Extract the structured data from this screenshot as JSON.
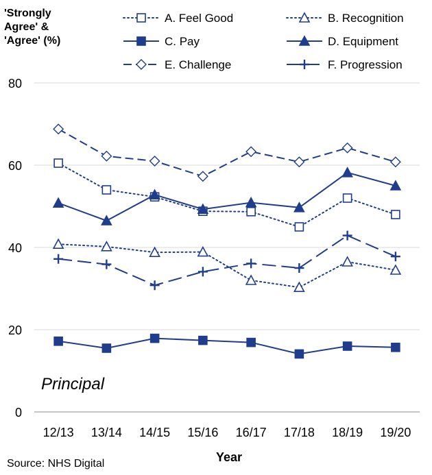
{
  "chart_data": {
    "type": "line",
    "ylabel_lines": [
      "'Strongly",
      "Agree' &",
      "'Agree' (%)"
    ],
    "xlabel": "Year",
    "annotation": "Principal",
    "source": "Source: NHS Digital",
    "categories": [
      "12/13",
      "13/14",
      "14/15",
      "15/16",
      "16/17",
      "17/18",
      "18/19",
      "19/20"
    ],
    "ylim": [
      0,
      80
    ],
    "yticks": [
      0,
      20,
      40,
      60,
      80
    ],
    "grid": true,
    "legend_position": "top",
    "color": "#1f3d8c",
    "series": [
      {
        "name": "A. Feel Good",
        "marker": "square-open",
        "dash": "dotted",
        "values": [
          60.5,
          54,
          52.3,
          48.8,
          48.7,
          45,
          52,
          48
        ]
      },
      {
        "name": "B. Recognition",
        "marker": "triangle-open",
        "dash": "dotted",
        "values": [
          40.8,
          40.2,
          38.8,
          38.9,
          32,
          30.3,
          36.5,
          34.5
        ]
      },
      {
        "name": "C. Pay",
        "marker": "square-filled",
        "dash": "solid",
        "values": [
          17.2,
          15.5,
          17.9,
          17.4,
          16.9,
          14.1,
          16,
          15.7
        ]
      },
      {
        "name": "D. Equipment",
        "marker": "triangle-filled",
        "dash": "solid",
        "values": [
          50.8,
          46.5,
          52.8,
          49.3,
          50.9,
          49.7,
          58.2,
          55
        ]
      },
      {
        "name": "E. Challenge",
        "marker": "diamond-open",
        "dash": "dashed",
        "values": [
          68.8,
          62.2,
          61,
          57.3,
          63.3,
          60.8,
          64.2,
          60.8
        ]
      },
      {
        "name": "F. Progression",
        "marker": "plus",
        "dash": "longdash",
        "values": [
          37.2,
          35.9,
          30.8,
          34.1,
          36.1,
          35,
          42.9,
          37.8
        ]
      }
    ]
  }
}
